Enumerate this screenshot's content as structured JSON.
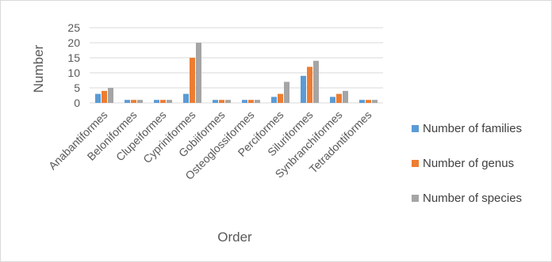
{
  "chart_data": {
    "type": "bar",
    "title": "",
    "xlabel": "Order",
    "ylabel": "Number",
    "ylim": [
      0,
      25
    ],
    "yticks": [
      0,
      5,
      10,
      15,
      20,
      25
    ],
    "grid": true,
    "legend_position": "right",
    "categories": [
      "Anabantiformes",
      "Beloniformes",
      "Clupeiformes",
      "Cypriniformes",
      "Gobiiformes",
      "Osteoglossiformes",
      "Perciformes",
      "Siluriformes",
      "Synbranchiformes",
      "Tetradontiformes"
    ],
    "series": [
      {
        "name": "Number of families",
        "color": "#5b9bd5",
        "values": [
          3,
          1,
          1,
          3,
          1,
          1,
          2,
          9,
          2,
          1
        ]
      },
      {
        "name": "Number of genus",
        "color": "#ed7d31",
        "values": [
          4,
          1,
          1,
          15,
          1,
          1,
          3,
          12,
          3,
          1
        ]
      },
      {
        "name": "Number of species",
        "color": "#a5a5a5",
        "values": [
          5,
          1,
          1,
          20,
          1,
          1,
          7,
          14,
          4,
          1
        ]
      }
    ]
  }
}
